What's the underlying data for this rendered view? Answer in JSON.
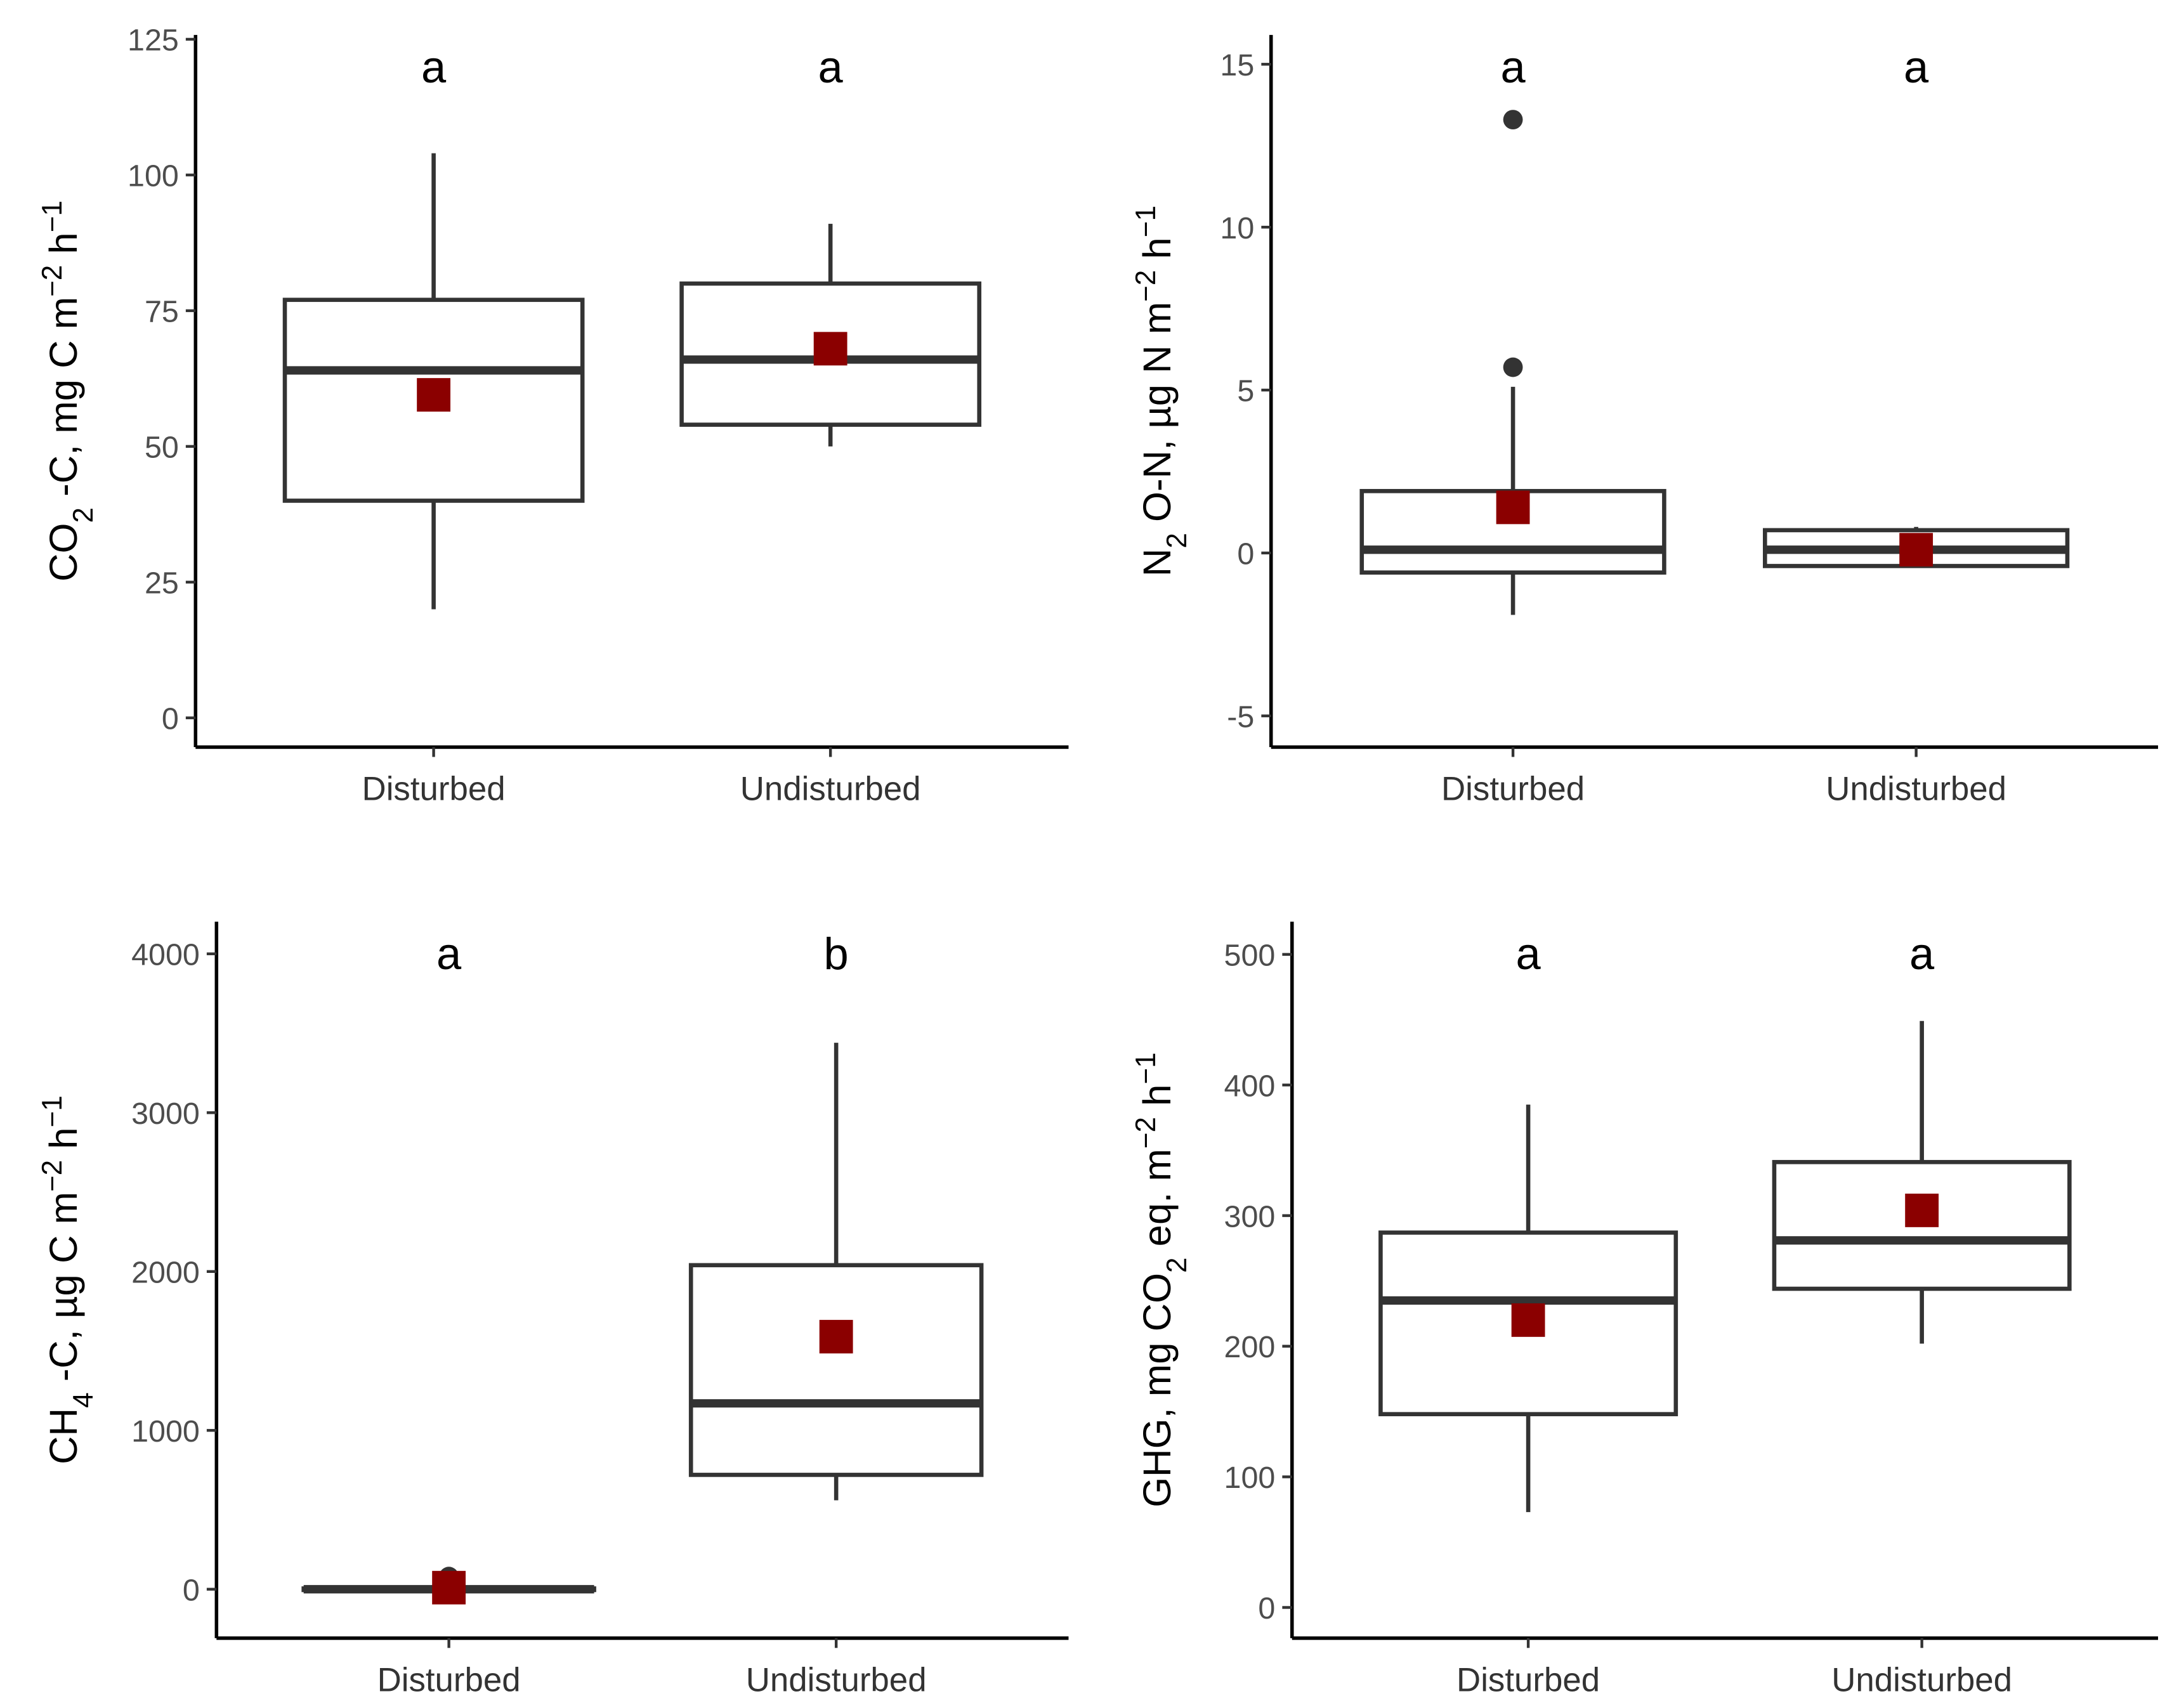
{
  "chart_data": [
    {
      "type": "box",
      "categories": [
        "Disturbed",
        "Undisturbed"
      ],
      "letters": [
        "a",
        "a"
      ],
      "ylabel": [
        {
          "text": "CO"
        },
        {
          "text": "2",
          "script": "sub"
        },
        {
          "text": " -C, mg C m"
        },
        {
          "text": "−2",
          "script": "sup"
        },
        {
          "text": " h"
        },
        {
          "text": "−1",
          "script": "sup"
        }
      ],
      "ylim": [
        -5.4,
        125.8
      ],
      "yticks": [
        0,
        25,
        50,
        75,
        100,
        125
      ],
      "box_color": "#333333",
      "mean_color": "#8b0000",
      "boxes": [
        {
          "low": 20,
          "q1": 40,
          "median": 64,
          "q3": 77,
          "high": 104,
          "mean": 59.5,
          "outliers": []
        },
        {
          "low": 50,
          "q1": 54,
          "median": 66,
          "q3": 80,
          "high": 91,
          "mean": 68,
          "outliers": []
        }
      ]
    },
    {
      "type": "box",
      "categories": [
        "Disturbed",
        "Undisturbed"
      ],
      "letters": [
        "a",
        "a"
      ],
      "ylabel": [
        {
          "text": "N"
        },
        {
          "text": "2",
          "script": "sub"
        },
        {
          "text": " O-N, µg N m"
        },
        {
          "text": "−2",
          "script": "sup"
        },
        {
          "text": " h"
        },
        {
          "text": "−1",
          "script": "sup"
        }
      ],
      "ylim": [
        -5.96,
        15.9
      ],
      "yticks": [
        -5,
        0,
        5,
        10,
        15
      ],
      "box_color": "#333333",
      "mean_color": "#8b0000",
      "boxes": [
        {
          "low": -1.9,
          "q1": -0.6,
          "median": 0.1,
          "q3": 1.9,
          "high": 5.1,
          "mean": 1.4,
          "outliers": [
            5.7,
            13.3
          ]
        },
        {
          "low": -0.4,
          "q1": -0.4,
          "median": 0.1,
          "q3": 0.7,
          "high": 0.8,
          "mean": 0.1,
          "outliers": []
        }
      ]
    },
    {
      "type": "box",
      "categories": [
        "Disturbed",
        "Undisturbed"
      ],
      "letters": [
        "a",
        "b"
      ],
      "ylabel": [
        {
          "text": "CH"
        },
        {
          "text": "4",
          "script": "sub"
        },
        {
          "text": " -C, µg C m"
        },
        {
          "text": "−2",
          "script": "sup"
        },
        {
          "text": " h"
        },
        {
          "text": "−1",
          "script": "sup"
        }
      ],
      "ylim": [
        -308,
        4202
      ],
      "yticks": [
        0,
        1000,
        2000,
        3000,
        4000
      ],
      "box_color": "#333333",
      "mean_color": "#8b0000",
      "boxes": [
        {
          "low": -10,
          "q1": -5,
          "median": 0,
          "q3": 5,
          "high": 10,
          "mean": 10,
          "outliers": [
            80
          ]
        },
        {
          "low": 560,
          "q1": 720,
          "median": 1170,
          "q3": 2040,
          "high": 3440,
          "mean": 1590,
          "outliers": []
        }
      ]
    },
    {
      "type": "box",
      "categories": [
        "Disturbed",
        "Undisturbed"
      ],
      "letters": [
        "a",
        "a"
      ],
      "ylabel": [
        {
          "text": "GHG, mg CO"
        },
        {
          "text": "2",
          "script": "sub"
        },
        {
          "text": " eq. m"
        },
        {
          "text": "−2",
          "script": "sup"
        },
        {
          "text": " h"
        },
        {
          "text": "−1",
          "script": "sup"
        }
      ],
      "ylim": [
        -23.5,
        525
      ],
      "yticks": [
        0,
        100,
        200,
        300,
        400,
        500
      ],
      "box_color": "#333333",
      "mean_color": "#8b0000",
      "boxes": [
        {
          "low": 73,
          "q1": 148,
          "median": 235,
          "q3": 287,
          "high": 385,
          "mean": 220,
          "outliers": []
        },
        {
          "low": 202,
          "q1": 244,
          "median": 281,
          "q3": 341,
          "high": 449,
          "mean": 304,
          "outliers": []
        }
      ]
    }
  ]
}
